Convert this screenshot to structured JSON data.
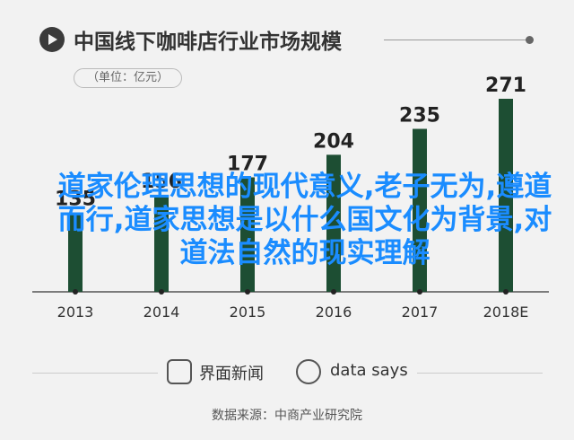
{
  "header": {
    "title": "中国线下咖啡店行业市场规模",
    "unit": "（单位：亿元）"
  },
  "chart_data": {
    "type": "bar",
    "categories": [
      "2013",
      "2014",
      "2015",
      "2016",
      "2017",
      "2018E"
    ],
    "values": [
      135,
      156,
      177,
      204,
      235,
      271
    ],
    "title": "中国线下咖啡店行业市场规模",
    "unit": "（单位：亿元）",
    "bar_color": "#1d4e33",
    "ylim": [
      0,
      280
    ]
  },
  "overlay_text": "道家伦理思想的现代意义,老子无为,遵道而行,道家思想是以什么国文化为背景,对道法自然的现实理解",
  "footer": {
    "brand_left": "界面新闻",
    "brand_right": "data says",
    "source": "数据来源：中商产业研究院"
  }
}
